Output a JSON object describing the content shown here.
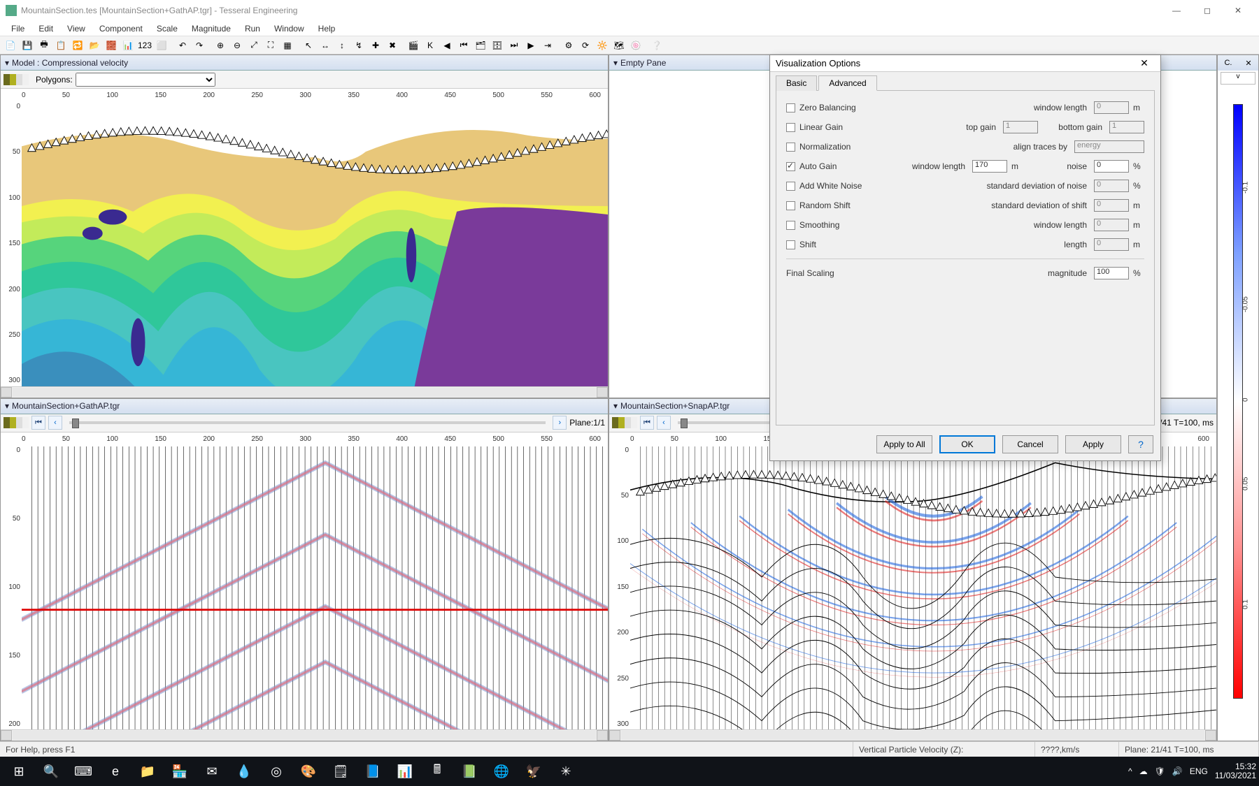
{
  "window": {
    "title": "MountainSection.tes [MountainSection+GathAP.tgr] - Tesseral Engineering",
    "min_icon": "—",
    "max_icon": "◻",
    "close_icon": "✕"
  },
  "menus": [
    "File",
    "Edit",
    "View",
    "Component",
    "Scale",
    "Magnitude",
    "Run",
    "Window",
    "Help"
  ],
  "toolbar_icons": [
    "📄",
    "💾",
    "🖶",
    "📋",
    "🔁",
    "📂",
    "🧱",
    "📊",
    "123",
    "⬜",
    "|",
    "↶",
    "↷",
    "|",
    "⊕",
    "⊖",
    "⤢",
    "⛶",
    "▦",
    "|",
    "↖",
    "↔",
    "↕",
    "↯",
    "✚",
    "✖",
    "|",
    "🎬",
    "K",
    "◀",
    "⏮",
    "🗂",
    "🗄",
    "⏭",
    "▶",
    "⇥",
    "|",
    "⚙",
    "⟳",
    "🔆",
    "🗺",
    "🍥",
    "|",
    "❔"
  ],
  "pane_model": {
    "title": "Model : Compressional velocity",
    "polygons_label": "Polygons:",
    "swatch_colors": [
      "#6b6b1e",
      "#b0b020",
      "#dedede",
      "#f0f0f0"
    ],
    "x_ticks": [
      "0",
      "50",
      "100",
      "150",
      "200",
      "250",
      "300",
      "350",
      "400",
      "450",
      "500",
      "550",
      "600"
    ],
    "y_ticks": [
      "0",
      "50",
      "100",
      "150",
      "200",
      "250",
      "300"
    ],
    "geology_colors": {
      "sky": "#ffffff",
      "sand": "#e8c77a",
      "yellow": "#f2f050",
      "lime": "#c3eb5a",
      "green1": "#56d47c",
      "green2": "#2fc79a",
      "teal": "#49c5c0",
      "cyan": "#36b6d6",
      "blue": "#3a8fbd",
      "navy": "#3a6bb0",
      "purple": "#7a3a9a",
      "violet": "#3a2a90"
    }
  },
  "pane_empty": {
    "title": "Empty Pane"
  },
  "pane_gath": {
    "title": "MountainSection+GathAP.tgr",
    "plane_label": "Plane:1/1",
    "swatch_colors": [
      "#6b6b1e",
      "#b0b020",
      "#dedede",
      "#f0f0f0"
    ],
    "x_ticks": [
      "0",
      "50",
      "100",
      "150",
      "200",
      "250",
      "300",
      "350",
      "400",
      "450",
      "500",
      "550",
      "600"
    ],
    "y_ticks": [
      "0",
      "50",
      "100",
      "150",
      "200"
    ],
    "wave_color_pos": "#e07080",
    "wave_color_neg": "#7090d0",
    "trace_color": "#000000",
    "redline_y": 100
  },
  "pane_snap": {
    "title": "MountainSection+SnapAP.tgr",
    "plane_label": "Plane: 21/41 T=100, ms",
    "swatch_colors": [
      "#6b6b1e",
      "#b0b020",
      "#dedede",
      "#f0f0f0"
    ],
    "x_ticks": [
      "0",
      "50",
      "100",
      "150",
      "200",
      "250",
      "300",
      "350",
      "400",
      "450",
      "500",
      "550",
      "600"
    ],
    "y_ticks": [
      "0",
      "50",
      "100",
      "150",
      "200",
      "250",
      "300"
    ],
    "wave_color_pos": "#d22",
    "wave_color_neg": "#26d",
    "outline": "#000"
  },
  "colorbar": {
    "top_buttons": [
      "C.",
      "✕"
    ],
    "dropdown": "v",
    "ticks": [
      {
        "pos": 15,
        "label": "-0.1"
      },
      {
        "pos": 35,
        "label": "-0.05"
      },
      {
        "pos": 50,
        "label": "0"
      },
      {
        "pos": 65,
        "label": "0.05"
      },
      {
        "pos": 85,
        "label": "0.1"
      }
    ]
  },
  "dialog": {
    "title": "Visualization Options",
    "tabs": [
      "Basic",
      "Advanced"
    ],
    "active_tab": 1,
    "rows": [
      {
        "cb": false,
        "label": "Zero Balancing",
        "r1": "window length",
        "v1": "0",
        "u1": "m"
      },
      {
        "cb": false,
        "label": "Linear Gain",
        "r1": "top gain",
        "v1": "1",
        "r2": "bottom gain",
        "v2": "1"
      },
      {
        "cb": false,
        "label": "Normalization",
        "r1": "align traces by",
        "sel": "energy"
      },
      {
        "cb": true,
        "label": "Auto Gain",
        "r1": "window length",
        "v1": "170",
        "u1": "m",
        "r2": "noise",
        "v2": "0",
        "u2": "%"
      },
      {
        "cb": false,
        "label": "Add White Noise",
        "r1": "standard deviation of noise",
        "v1": "0",
        "u1": "%"
      },
      {
        "cb": false,
        "label": "Random Shift",
        "r1": "standard deviation of shift",
        "v1": "0",
        "u1": "m"
      },
      {
        "cb": false,
        "label": "Smoothing",
        "r1": "window length",
        "v1": "0",
        "u1": "m"
      },
      {
        "cb": false,
        "label": "Shift",
        "r1": "length",
        "v1": "0",
        "u1": "m"
      }
    ],
    "final_label": "Final Scaling",
    "final_r": "magnitude",
    "final_v": "100",
    "final_u": "%",
    "buttons": {
      "apply_all": "Apply to All",
      "ok": "OK",
      "cancel": "Cancel",
      "apply": "Apply",
      "help": "?"
    }
  },
  "status": {
    "left": "For Help, press F1",
    "field": "Vertical Particle Velocity (Z):",
    "units": "????,km/s",
    "plane": "Plane: 21/41 T=100, ms"
  },
  "taskbar": {
    "icons": [
      "⊞",
      "🔍",
      "⌨",
      "e",
      "📁",
      "🏪",
      "✉",
      "💧",
      "◎",
      "🎨",
      "🗒",
      "📘",
      "📊",
      "🖩",
      "📗",
      "🌐",
      "🦅",
      "✳"
    ],
    "tray": [
      "^",
      "☁",
      "🛡",
      "🔊",
      "ENG"
    ],
    "time": "15:32",
    "date": "11/03/2021"
  }
}
